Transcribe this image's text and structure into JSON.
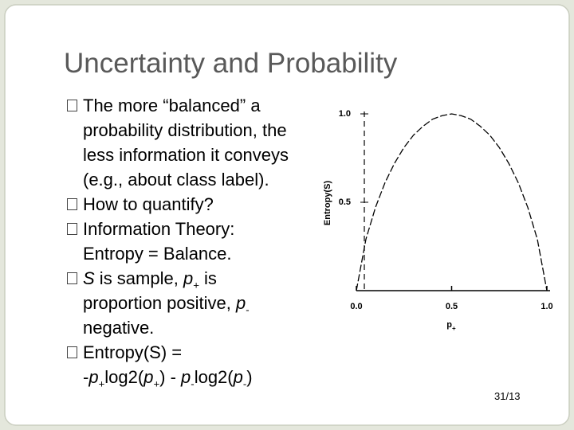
{
  "slide": {
    "title": "Uncertainty and Probability",
    "bullets": [
      {
        "lines": [
          [
            {
              "text": "The more “balanced” a probability distribution, the less information it conveys (e.g., about class label)."
            }
          ]
        ]
      },
      {
        "lines": [
          [
            {
              "text": "How to quantify?"
            }
          ]
        ]
      },
      {
        "lines": [
          [
            {
              "text": "Information Theory: Entropy = Balance."
            }
          ]
        ]
      },
      {
        "lines": [
          [
            {
              "text": "S",
              "italic": true
            },
            {
              "text": " is sample, "
            },
            {
              "text": "p",
              "italic": true
            },
            {
              "text": "+",
              "sub": true
            },
            {
              "text": " is proportion positive, "
            },
            {
              "text": "p",
              "italic": true
            },
            {
              "text": "-",
              "sub": true
            },
            {
              "text": " negative."
            }
          ]
        ]
      },
      {
        "lines": [
          [
            {
              "text": "Entropy(S) ="
            }
          ],
          [
            {
              "text": "-"
            },
            {
              "text": "p",
              "italic": true
            },
            {
              "text": "+",
              "sub": true
            },
            {
              "text": "log2("
            },
            {
              "text": "p",
              "italic": true
            },
            {
              "text": "+",
              "sub": true
            },
            {
              "text": ") - "
            },
            {
              "text": "p",
              "italic": true
            },
            {
              "text": "-",
              "sub": true
            },
            {
              "text": "log2("
            },
            {
              "text": "p",
              "italic": true
            },
            {
              "text": "-",
              "sub": true
            },
            {
              "text": ")"
            }
          ]
        ]
      }
    ],
    "page_number": "31/13"
  },
  "chart_data": {
    "type": "line",
    "y_label": "Entropy(S)",
    "x_label": "p",
    "x_label_sub": "+",
    "x": [
      0,
      0.05,
      0.1,
      0.15,
      0.2,
      0.25,
      0.3,
      0.35,
      0.4,
      0.45,
      0.5,
      0.55,
      0.6,
      0.65,
      0.7,
      0.75,
      0.8,
      0.85,
      0.9,
      0.95,
      1
    ],
    "values": [
      0,
      0.29,
      0.47,
      0.61,
      0.72,
      0.81,
      0.88,
      0.93,
      0.97,
      0.99,
      1.0,
      0.99,
      0.97,
      0.93,
      0.88,
      0.81,
      0.72,
      0.61,
      0.47,
      0.29,
      0
    ],
    "color": "#000000",
    "xlim": [
      0,
      1
    ],
    "ylim": [
      0,
      1
    ],
    "xticks": [
      {
        "value": 0,
        "label": "0.0"
      },
      {
        "value": 0.5,
        "label": "0.5"
      },
      {
        "value": 1,
        "label": "1.0"
      }
    ],
    "yticks": [
      {
        "value": 0.5,
        "label": "0.5"
      },
      {
        "value": 1,
        "label": "1.0"
      }
    ]
  }
}
